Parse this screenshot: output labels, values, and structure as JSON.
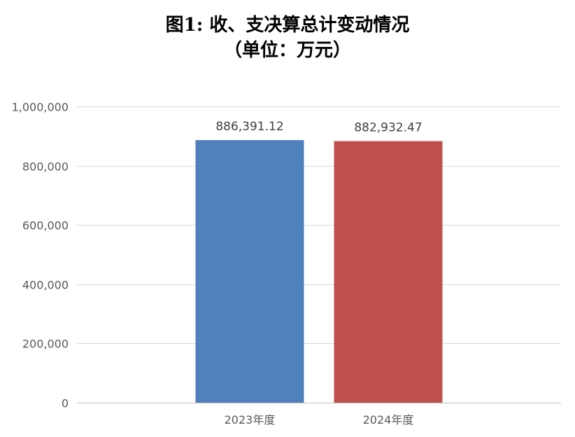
{
  "chart_data": {
    "type": "bar",
    "title": [
      "图1: 收、支决算总计变动情况",
      "（单位：万元）"
    ],
    "categories": [
      "2023年度",
      "2024年度"
    ],
    "values": [
      886391.12,
      882932.47
    ],
    "data_labels": [
      "886,391.12",
      "882,932.47"
    ],
    "colors": [
      "#4F81BD",
      "#C0504D"
    ],
    "ylim": [
      0,
      1000000
    ],
    "yticks": [
      0,
      200000,
      400000,
      600000,
      800000,
      1000000
    ],
    "ytick_labels": [
      "0",
      "200,000",
      "400,000",
      "600,000",
      "800,000",
      "1,000,000"
    ],
    "grid": true,
    "legend": "none",
    "xlabel": "",
    "ylabel": ""
  }
}
